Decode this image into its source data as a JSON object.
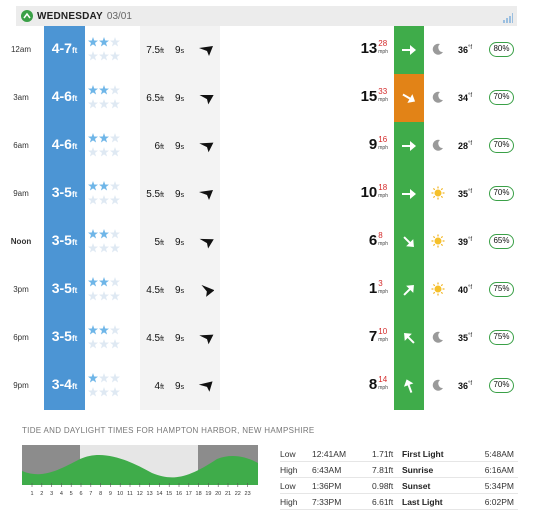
{
  "header": {
    "day": "WEDNESDAY",
    "date": "03/01"
  },
  "colors": {
    "surf": "#4c95d4",
    "wind_good": "#3fac4a",
    "wind_bad": "#e28317",
    "star_on": "#6fb6e8",
    "star_off": "#dfe9f3"
  },
  "rows": [
    {
      "time": "12am",
      "surf": "4-7",
      "surf_unit": "ft",
      "stars": 2,
      "swell": "7.5",
      "swell_unit": "ft",
      "period": "9",
      "period_unit": "s",
      "swell_dir": 200,
      "wind": "13",
      "gust": "28",
      "wind_unit": "mph",
      "wind_dir": 0,
      "wind_color": "green",
      "icon": "moon-icon",
      "temp": "36",
      "temp_unit": "°f",
      "humidity": "80%"
    },
    {
      "time": "3am",
      "surf": "4-6",
      "surf_unit": "ft",
      "stars": 2,
      "swell": "6.5",
      "swell_unit": "ft",
      "period": "9",
      "period_unit": "s",
      "swell_dir": 208,
      "wind": "15",
      "gust": "33",
      "wind_unit": "mph",
      "wind_dir": 30,
      "wind_color": "orange",
      "icon": "moon-icon",
      "temp": "34",
      "temp_unit": "°f",
      "humidity": "70%"
    },
    {
      "time": "6am",
      "surf": "4-6",
      "surf_unit": "ft",
      "stars": 2,
      "swell": "6",
      "swell_unit": "ft",
      "period": "9",
      "period_unit": "s",
      "swell_dir": 205,
      "wind": "9",
      "gust": "16",
      "wind_unit": "mph",
      "wind_dir": 0,
      "wind_color": "green",
      "icon": "moon-icon",
      "temp": "28",
      "temp_unit": "°f",
      "humidity": "70%"
    },
    {
      "time": "9am",
      "surf": "3-5",
      "surf_unit": "ft",
      "stars": 2,
      "swell": "5.5",
      "swell_unit": "ft",
      "period": "9",
      "period_unit": "s",
      "swell_dir": 200,
      "wind": "10",
      "gust": "18",
      "wind_unit": "mph",
      "wind_dir": 0,
      "wind_color": "green",
      "icon": "sun-icon",
      "temp": "35",
      "temp_unit": "°f",
      "humidity": "70%"
    },
    {
      "time": "Noon",
      "surf": "3-5",
      "surf_unit": "ft",
      "stars": 2,
      "swell": "5",
      "swell_unit": "ft",
      "period": "9",
      "period_unit": "s",
      "swell_dir": 210,
      "wind": "6",
      "gust": "8",
      "wind_unit": "mph",
      "wind_dir": 45,
      "wind_color": "green",
      "icon": "sun-icon",
      "temp": "39",
      "temp_unit": "°f",
      "humidity": "65%"
    },
    {
      "time": "3pm",
      "surf": "3-5",
      "surf_unit": "ft",
      "stars": 2,
      "swell": "4.5",
      "swell_unit": "ft",
      "period": "9",
      "period_unit": "s",
      "swell_dir": 230,
      "wind": "1",
      "gust": "3",
      "wind_unit": "mph",
      "wind_dir": -45,
      "wind_color": "green",
      "icon": "sun-icon",
      "temp": "40",
      "temp_unit": "°f",
      "humidity": "75%"
    },
    {
      "time": "6pm",
      "surf": "3-5",
      "surf_unit": "ft",
      "stars": 2,
      "swell": "4.5",
      "swell_unit": "ft",
      "period": "9",
      "period_unit": "s",
      "swell_dir": 205,
      "wind": "7",
      "gust": "10",
      "wind_unit": "mph",
      "wind_dir": -135,
      "wind_color": "green",
      "icon": "moon-icon",
      "temp": "35",
      "temp_unit": "°f",
      "humidity": "75%"
    },
    {
      "time": "9pm",
      "surf": "3-4",
      "surf_unit": "ft",
      "stars": 1,
      "swell": "4",
      "swell_unit": "ft",
      "period": "9",
      "period_unit": "s",
      "swell_dir": 195,
      "wind": "8",
      "gust": "14",
      "wind_unit": "mph",
      "wind_dir": -110,
      "wind_color": "green",
      "icon": "moon-icon",
      "temp": "36",
      "temp_unit": "°f",
      "humidity": "70%"
    }
  ],
  "tide": {
    "title": "TIDE AND DAYLIGHT TIMES FOR HAMPTON HARBOR, NEW HAMPSHIRE",
    "hours": [
      "1",
      "2",
      "3",
      "4",
      "5",
      "6",
      "7",
      "8",
      "9",
      "10",
      "11",
      "12",
      "13",
      "14",
      "15",
      "16",
      "17",
      "18",
      "19",
      "20",
      "21",
      "22",
      "23"
    ],
    "rows": [
      {
        "type": "Low",
        "time": "12:41AM",
        "height": "1.71ft",
        "dl_label": "First Light",
        "dl_time": "5:48AM"
      },
      {
        "type": "High",
        "time": "6:43AM",
        "height": "7.81ft",
        "dl_label": "Sunrise",
        "dl_time": "6:16AM"
      },
      {
        "type": "Low",
        "time": "1:36PM",
        "height": "0.98ft",
        "dl_label": "Sunset",
        "dl_time": "5:34PM"
      },
      {
        "type": "High",
        "time": "7:33PM",
        "height": "6.61ft",
        "dl_label": "Last Light",
        "dl_time": "6:02PM"
      }
    ]
  }
}
